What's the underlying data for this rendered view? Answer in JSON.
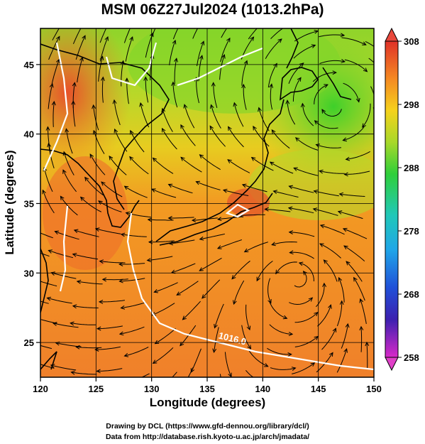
{
  "title": "MSM 06Z27Jul2024 (1013.2hPa)",
  "chart_data": {
    "type": "heatmap",
    "xlabel": "Longitude (degrees)",
    "ylabel": "Latitude  (degrees)",
    "xlim": [
      120,
      150
    ],
    "ylim": [
      22.5,
      47.6
    ],
    "x_ticks": [
      "120",
      "125",
      "130",
      "135",
      "140",
      "145",
      "150"
    ],
    "y_ticks": [
      "25",
      "30",
      "35",
      "40",
      "45"
    ],
    "colorbar": {
      "range": [
        258,
        308
      ],
      "labels": [
        "308",
        "298",
        "288",
        "278",
        "268",
        "258"
      ],
      "label_values": [
        308,
        298,
        288,
        278,
        268,
        258
      ]
    },
    "contours": [
      {
        "label": "1016.0",
        "lon": 137.5,
        "lat": 25.0
      }
    ]
  },
  "credits": {
    "line1": "Drawing by DCL (https://www.gfd-dennou.org/library/dcl/)",
    "line2": "Data from http://database.rish.kyoto-u.ac.jp/arch/jmadata/"
  },
  "colors": {
    "hot": "#e8502a",
    "warm": "#f47f22",
    "mild": "#f7b21c",
    "cool": "#a6d52a",
    "cold": "#3fcf2a"
  }
}
